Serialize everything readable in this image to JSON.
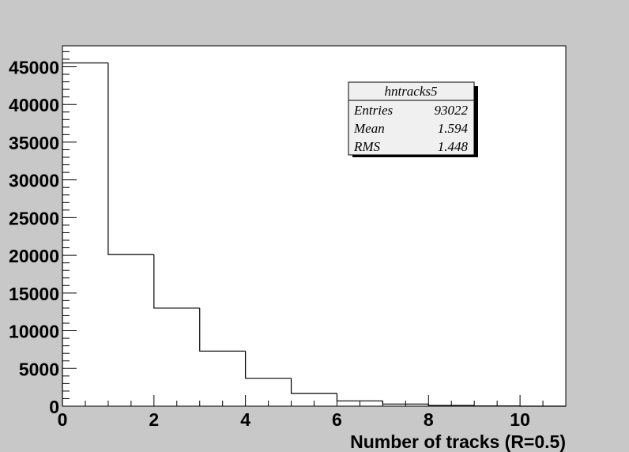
{
  "chart_data": {
    "type": "histogram",
    "title": "",
    "xlabel": "Number of tracks (R=0.5)",
    "ylabel": "",
    "xlim": [
      0,
      11
    ],
    "ylim": [
      0,
      47500
    ],
    "bin_width": 1,
    "bins": [
      {
        "x0": 0,
        "x1": 1,
        "count": 45500
      },
      {
        "x0": 1,
        "x1": 2,
        "count": 20100
      },
      {
        "x0": 2,
        "x1": 3,
        "count": 13000
      },
      {
        "x0": 3,
        "x1": 4,
        "count": 7300
      },
      {
        "x0": 4,
        "x1": 5,
        "count": 3700
      },
      {
        "x0": 5,
        "x1": 6,
        "count": 1700
      },
      {
        "x0": 6,
        "x1": 7,
        "count": 700
      },
      {
        "x0": 7,
        "x1": 8,
        "count": 280
      },
      {
        "x0": 8,
        "x1": 9,
        "count": 100
      },
      {
        "x0": 9,
        "x1": 10,
        "count": 30
      },
      {
        "x0": 10,
        "x1": 11,
        "count": 0
      }
    ],
    "x_ticks": [
      "0",
      "2",
      "4",
      "6",
      "8",
      "10"
    ],
    "y_ticks": [
      "0",
      "5000",
      "10000",
      "15000",
      "20000",
      "25000",
      "30000",
      "35000",
      "40000",
      "45000"
    ],
    "stats_box": {
      "name": "hntracks5",
      "rows": [
        {
          "label": "Entries",
          "value": "93022"
        },
        {
          "label": "Mean",
          "value": "1.594"
        },
        {
          "label": "RMS",
          "value": "1.448"
        }
      ]
    },
    "colors": {
      "background": "#c8c8c8",
      "frame": "#ffffff",
      "line": "#000000",
      "stats_fill": "#f0f0f0"
    },
    "grid": false
  }
}
